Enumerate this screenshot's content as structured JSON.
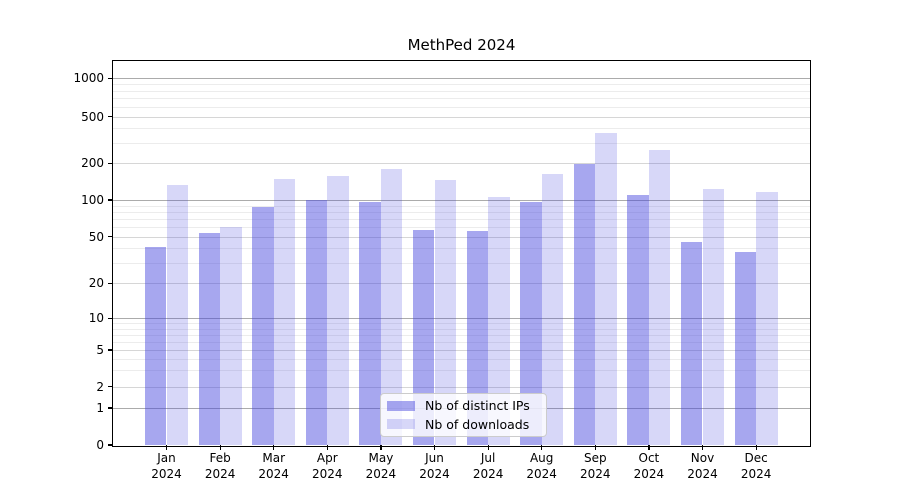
{
  "chart_data": {
    "type": "bar",
    "title": "MethPed 2024",
    "categories": [
      "Jan 2024",
      "Feb 2024",
      "Mar 2024",
      "Apr 2024",
      "May 2024",
      "Jun 2024",
      "Jul 2024",
      "Aug 2024",
      "Sep 2024",
      "Oct 2024",
      "Nov 2024",
      "Dec 2024"
    ],
    "series": [
      {
        "name": "Nb of distinct IPs",
        "color": "rgba(68,68,221,0.47)",
        "values": [
          41,
          54,
          87,
          100,
          96,
          57,
          56,
          97,
          197,
          110,
          45,
          37
        ]
      },
      {
        "name": "Nb of downloads",
        "color": "rgba(68,68,221,0.21)",
        "values": [
          134,
          60,
          148,
          156,
          179,
          145,
          106,
          163,
          360,
          260,
          123,
          116
        ]
      }
    ],
    "xlabel": "",
    "ylabel": "",
    "y_scale": "symlog",
    "y_ticks": [
      0,
      1,
      2,
      5,
      10,
      20,
      50,
      100,
      200,
      500,
      1000
    ],
    "y_minor_ticks": [
      3,
      4,
      6,
      7,
      8,
      9,
      30,
      40,
      60,
      70,
      80,
      90,
      300,
      400,
      600,
      700,
      800,
      900
    ],
    "ylim": [
      0,
      1400
    ],
    "grid": true,
    "legend_position": "lower center"
  },
  "colors": {
    "grid_power10": "#ababab",
    "grid_labeled": "#d6d6d6",
    "grid_minor": "#ececec",
    "spine": "#000000",
    "text": "#000000",
    "legend_border": "#cccccc",
    "legend_background": "rgba(255,255,255,0.8)"
  }
}
